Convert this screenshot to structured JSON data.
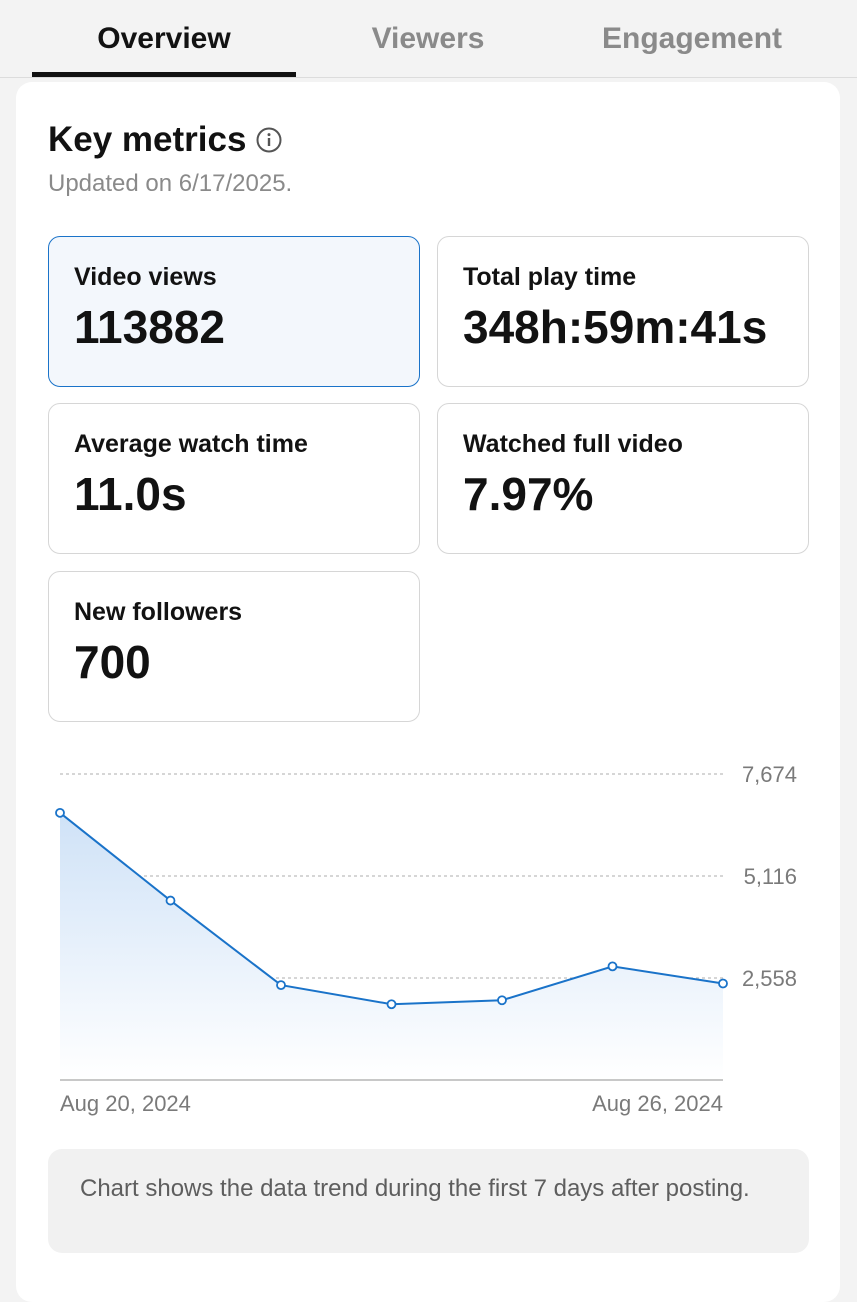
{
  "tabs": [
    {
      "label": "Overview",
      "active": true
    },
    {
      "label": "Viewers",
      "active": false
    },
    {
      "label": "Engagement",
      "active": false
    }
  ],
  "header": {
    "title": "Key metrics",
    "info_icon": "info-icon",
    "updated": "Updated on 6/17/2025."
  },
  "metrics": [
    {
      "label": "Video views",
      "value": "113882",
      "selected": true
    },
    {
      "label": "Total play time",
      "value": "348h:59m:41s",
      "selected": false
    },
    {
      "label": "Average watch time",
      "value": "11.0s",
      "selected": false
    },
    {
      "label": "Watched full video",
      "value": "7.97%",
      "selected": false
    },
    {
      "label": "New followers",
      "value": "700",
      "selected": false
    }
  ],
  "chart_data": {
    "type": "area",
    "x_labels": [
      "Aug 20, 2024",
      "Aug 26, 2024"
    ],
    "x": [
      "Aug 20, 2024",
      "Aug 21, 2024",
      "Aug 22, 2024",
      "Aug 23, 2024",
      "Aug 24, 2024",
      "Aug 25, 2024",
      "Aug 26, 2024"
    ],
    "series": [
      {
        "values": [
          6700,
          4500,
          2380,
          1900,
          2000,
          2850,
          2420
        ]
      }
    ],
    "y_ticks": [
      "2,558",
      "5,116",
      "7,674"
    ],
    "y_tick_values": [
      2558,
      5116,
      7674
    ],
    "ylim": [
      0,
      7674
    ],
    "grid": true,
    "color": "#1a73c9"
  },
  "note": "Chart shows the data trend during the first 7 days after posting.",
  "colors": {
    "accent": "#1a73c9",
    "selected_bg": "#f3f7fc"
  }
}
